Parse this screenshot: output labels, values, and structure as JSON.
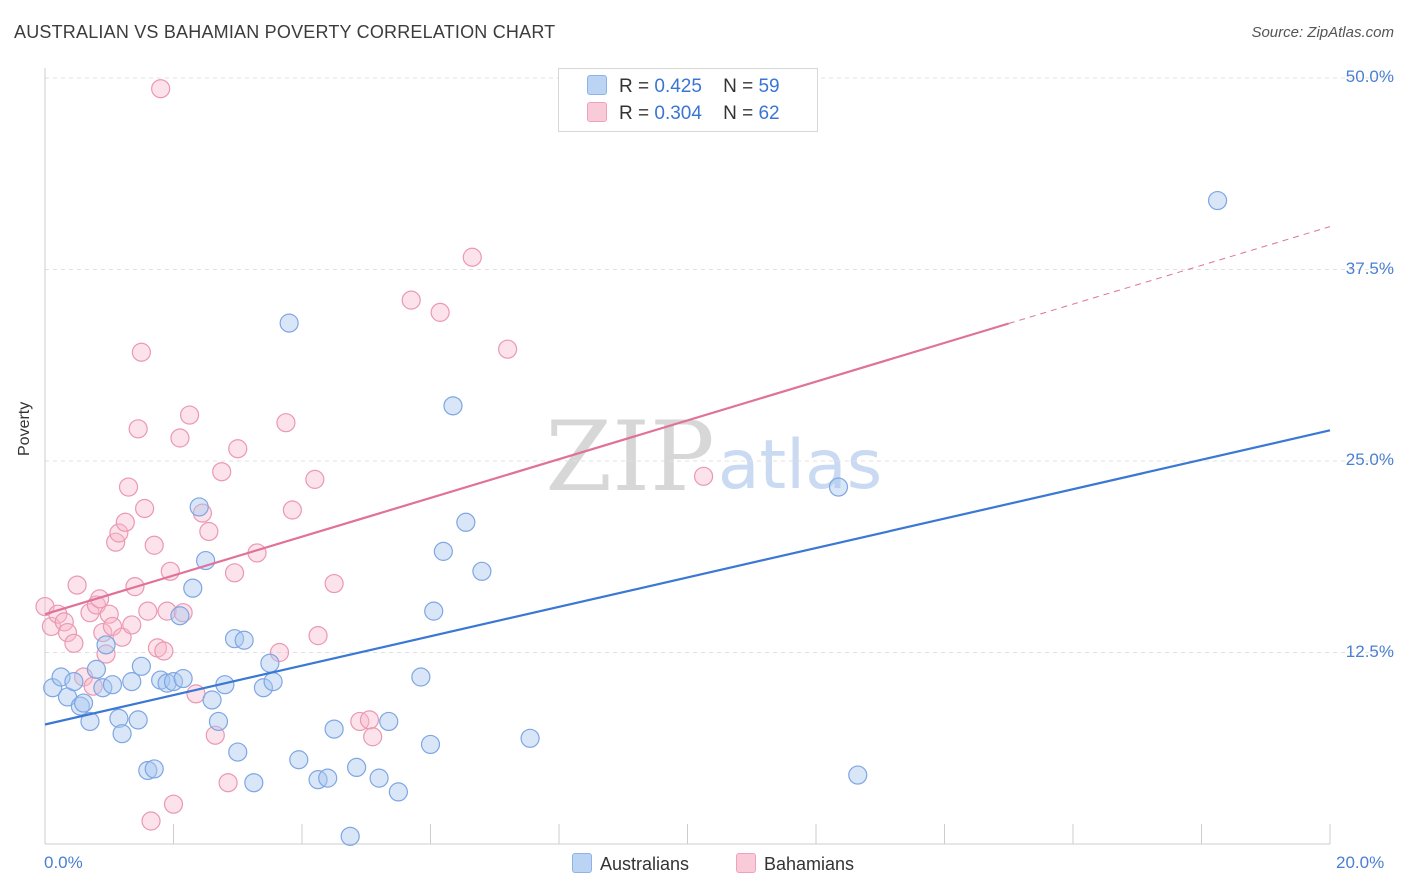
{
  "title": "AUSTRALIAN VS BAHAMIAN POVERTY CORRELATION CHART",
  "source": "Source: ZipAtlas.com",
  "watermark": {
    "zip": "ZIP",
    "atlas": "atlas"
  },
  "legend": {
    "r_label": "R =",
    "n_label": "N =",
    "rows": [
      {
        "r": "0.425",
        "n": "59",
        "color": "#a9c8f0"
      },
      {
        "r": "0.304",
        "n": "62",
        "color": "#f7b7ca"
      }
    ]
  },
  "bottom_legend": [
    "Australians",
    "Bahamians"
  ],
  "chart_data": {
    "type": "scatter",
    "title": "AUSTRALIAN VS BAHAMIAN POVERTY CORRELATION CHART",
    "xlabel": "",
    "ylabel": "Poverty",
    "xlim": [
      0,
      20
    ],
    "ylim": [
      0,
      50
    ],
    "x_tick_labels": [
      "0.0%",
      "20.0%"
    ],
    "y_ticks": [
      12.5,
      25.0,
      37.5,
      50.0
    ],
    "y_tick_labels": [
      "12.5%",
      "25.0%",
      "37.5%",
      "50.0%"
    ],
    "grid": "horizontal dashed",
    "legend_position": "top-center",
    "colors": {
      "australians": "#3a78d4",
      "bahamians": "#e0729a"
    },
    "series": [
      {
        "name": "Australians",
        "r": 0.425,
        "n": 59,
        "trend": {
          "x": [
            0,
            20
          ],
          "y": [
            7.8,
            27.0
          ],
          "dashed_from": null
        },
        "points": [
          [
            0.12,
            10.2
          ],
          [
            0.25,
            10.9
          ],
          [
            0.35,
            9.6
          ],
          [
            0.45,
            10.6
          ],
          [
            0.55,
            9.0
          ],
          [
            0.6,
            9.2
          ],
          [
            0.7,
            8.0
          ],
          [
            0.8,
            11.4
          ],
          [
            0.9,
            10.2
          ],
          [
            0.95,
            13.0
          ],
          [
            1.05,
            10.4
          ],
          [
            1.15,
            8.2
          ],
          [
            1.2,
            7.2
          ],
          [
            1.35,
            10.6
          ],
          [
            1.45,
            8.1
          ],
          [
            1.5,
            11.6
          ],
          [
            1.6,
            4.8
          ],
          [
            1.7,
            4.9
          ],
          [
            1.8,
            10.7
          ],
          [
            1.9,
            10.5
          ],
          [
            2.0,
            10.6
          ],
          [
            2.1,
            14.9
          ],
          [
            2.15,
            10.8
          ],
          [
            2.3,
            16.7
          ],
          [
            2.4,
            22.0
          ],
          [
            2.5,
            18.5
          ],
          [
            2.6,
            9.4
          ],
          [
            2.7,
            8.0
          ],
          [
            2.8,
            10.4
          ],
          [
            2.95,
            13.4
          ],
          [
            3.0,
            6.0
          ],
          [
            3.1,
            13.3
          ],
          [
            3.25,
            4.0
          ],
          [
            3.4,
            10.2
          ],
          [
            3.5,
            11.8
          ],
          [
            3.55,
            10.6
          ],
          [
            3.8,
            34.0
          ],
          [
            3.95,
            5.5
          ],
          [
            4.25,
            4.2
          ],
          [
            4.4,
            4.3
          ],
          [
            4.5,
            7.5
          ],
          [
            4.75,
            0.5
          ],
          [
            4.85,
            5.0
          ],
          [
            5.2,
            4.3
          ],
          [
            5.35,
            8.0
          ],
          [
            5.5,
            3.4
          ],
          [
            5.85,
            10.9
          ],
          [
            6.0,
            6.5
          ],
          [
            6.05,
            15.2
          ],
          [
            6.2,
            19.1
          ],
          [
            6.35,
            28.6
          ],
          [
            6.55,
            21.0
          ],
          [
            6.8,
            17.8
          ],
          [
            7.55,
            6.9
          ],
          [
            12.35,
            23.3
          ],
          [
            12.65,
            4.5
          ],
          [
            18.25,
            42.0
          ]
        ]
      },
      {
        "name": "Bahamians",
        "r": 0.304,
        "n": 62,
        "trend": {
          "x": [
            0,
            20
          ],
          "y": [
            15.0,
            40.3
          ],
          "dashed_from": 15.0
        },
        "points": [
          [
            0.0,
            15.5
          ],
          [
            0.1,
            14.2
          ],
          [
            0.2,
            15.0
          ],
          [
            0.3,
            14.5
          ],
          [
            0.35,
            13.8
          ],
          [
            0.45,
            13.1
          ],
          [
            0.5,
            16.9
          ],
          [
            0.6,
            10.9
          ],
          [
            0.7,
            15.1
          ],
          [
            0.75,
            10.3
          ],
          [
            0.8,
            15.6
          ],
          [
            0.85,
            16.0
          ],
          [
            0.9,
            13.8
          ],
          [
            0.95,
            12.4
          ],
          [
            1.0,
            15.0
          ],
          [
            1.05,
            14.2
          ],
          [
            1.1,
            19.7
          ],
          [
            1.15,
            20.3
          ],
          [
            1.2,
            13.5
          ],
          [
            1.25,
            21.0
          ],
          [
            1.3,
            23.3
          ],
          [
            1.35,
            14.3
          ],
          [
            1.4,
            16.8
          ],
          [
            1.45,
            27.1
          ],
          [
            1.5,
            32.1
          ],
          [
            1.55,
            21.9
          ],
          [
            1.6,
            15.2
          ],
          [
            1.65,
            1.5
          ],
          [
            1.7,
            19.5
          ],
          [
            1.75,
            12.8
          ],
          [
            1.8,
            49.3
          ],
          [
            1.85,
            12.6
          ],
          [
            1.9,
            15.2
          ],
          [
            1.95,
            17.8
          ],
          [
            2.0,
            2.6
          ],
          [
            2.1,
            26.5
          ],
          [
            2.15,
            15.1
          ],
          [
            2.25,
            28.0
          ],
          [
            2.35,
            9.8
          ],
          [
            2.45,
            21.6
          ],
          [
            2.55,
            20.4
          ],
          [
            2.65,
            7.1
          ],
          [
            2.75,
            24.3
          ],
          [
            2.85,
            4.0
          ],
          [
            2.95,
            17.7
          ],
          [
            3.0,
            25.8
          ],
          [
            3.3,
            19.0
          ],
          [
            3.65,
            12.5
          ],
          [
            3.75,
            27.5
          ],
          [
            3.85,
            21.8
          ],
          [
            4.2,
            23.8
          ],
          [
            4.25,
            13.6
          ],
          [
            4.5,
            17.0
          ],
          [
            4.9,
            8.0
          ],
          [
            5.05,
            8.1
          ],
          [
            5.1,
            7.0
          ],
          [
            5.7,
            35.5
          ],
          [
            6.15,
            34.7
          ],
          [
            6.65,
            38.3
          ],
          [
            7.2,
            32.3
          ],
          [
            10.25,
            24.0
          ]
        ]
      }
    ]
  }
}
